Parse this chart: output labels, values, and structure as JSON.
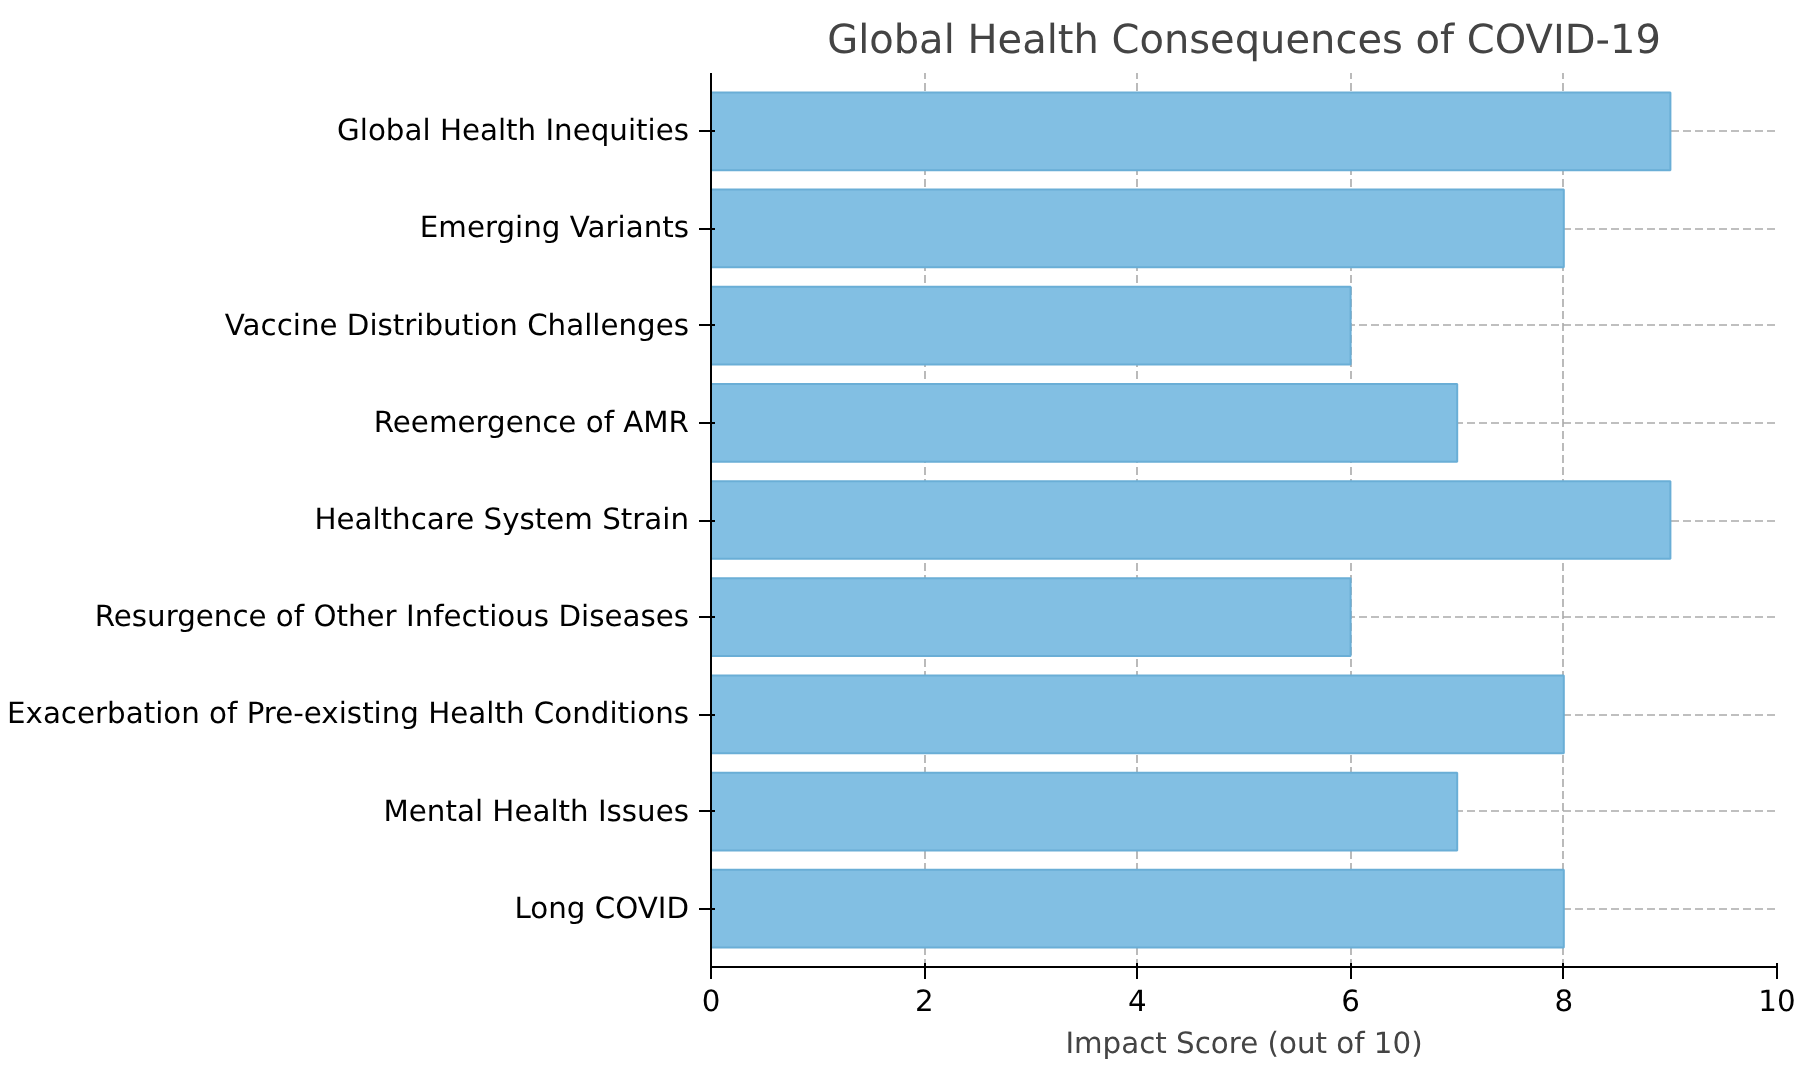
{
  "chart_data": {
    "type": "bar",
    "orientation": "horizontal",
    "title": "Global Health Consequences of COVID-19",
    "xlabel": "Impact Score (out of 10)",
    "categories": [
      "Global Health Inequities",
      "Emerging Variants",
      "Vaccine Distribution Challenges",
      "Reemergence of AMR",
      "Healthcare System Strain",
      "Resurgence of Other Infectious Diseases",
      "Exacerbation of Pre-existing Health Conditions",
      "Mental Health Issues",
      "Long COVID"
    ],
    "values": [
      9,
      8,
      6,
      7,
      9,
      6,
      8,
      7,
      8
    ],
    "color": "#82bfe3",
    "xlim": [
      0,
      10
    ],
    "xticks": [
      0,
      2,
      4,
      6,
      8,
      10
    ],
    "grid": true
  }
}
